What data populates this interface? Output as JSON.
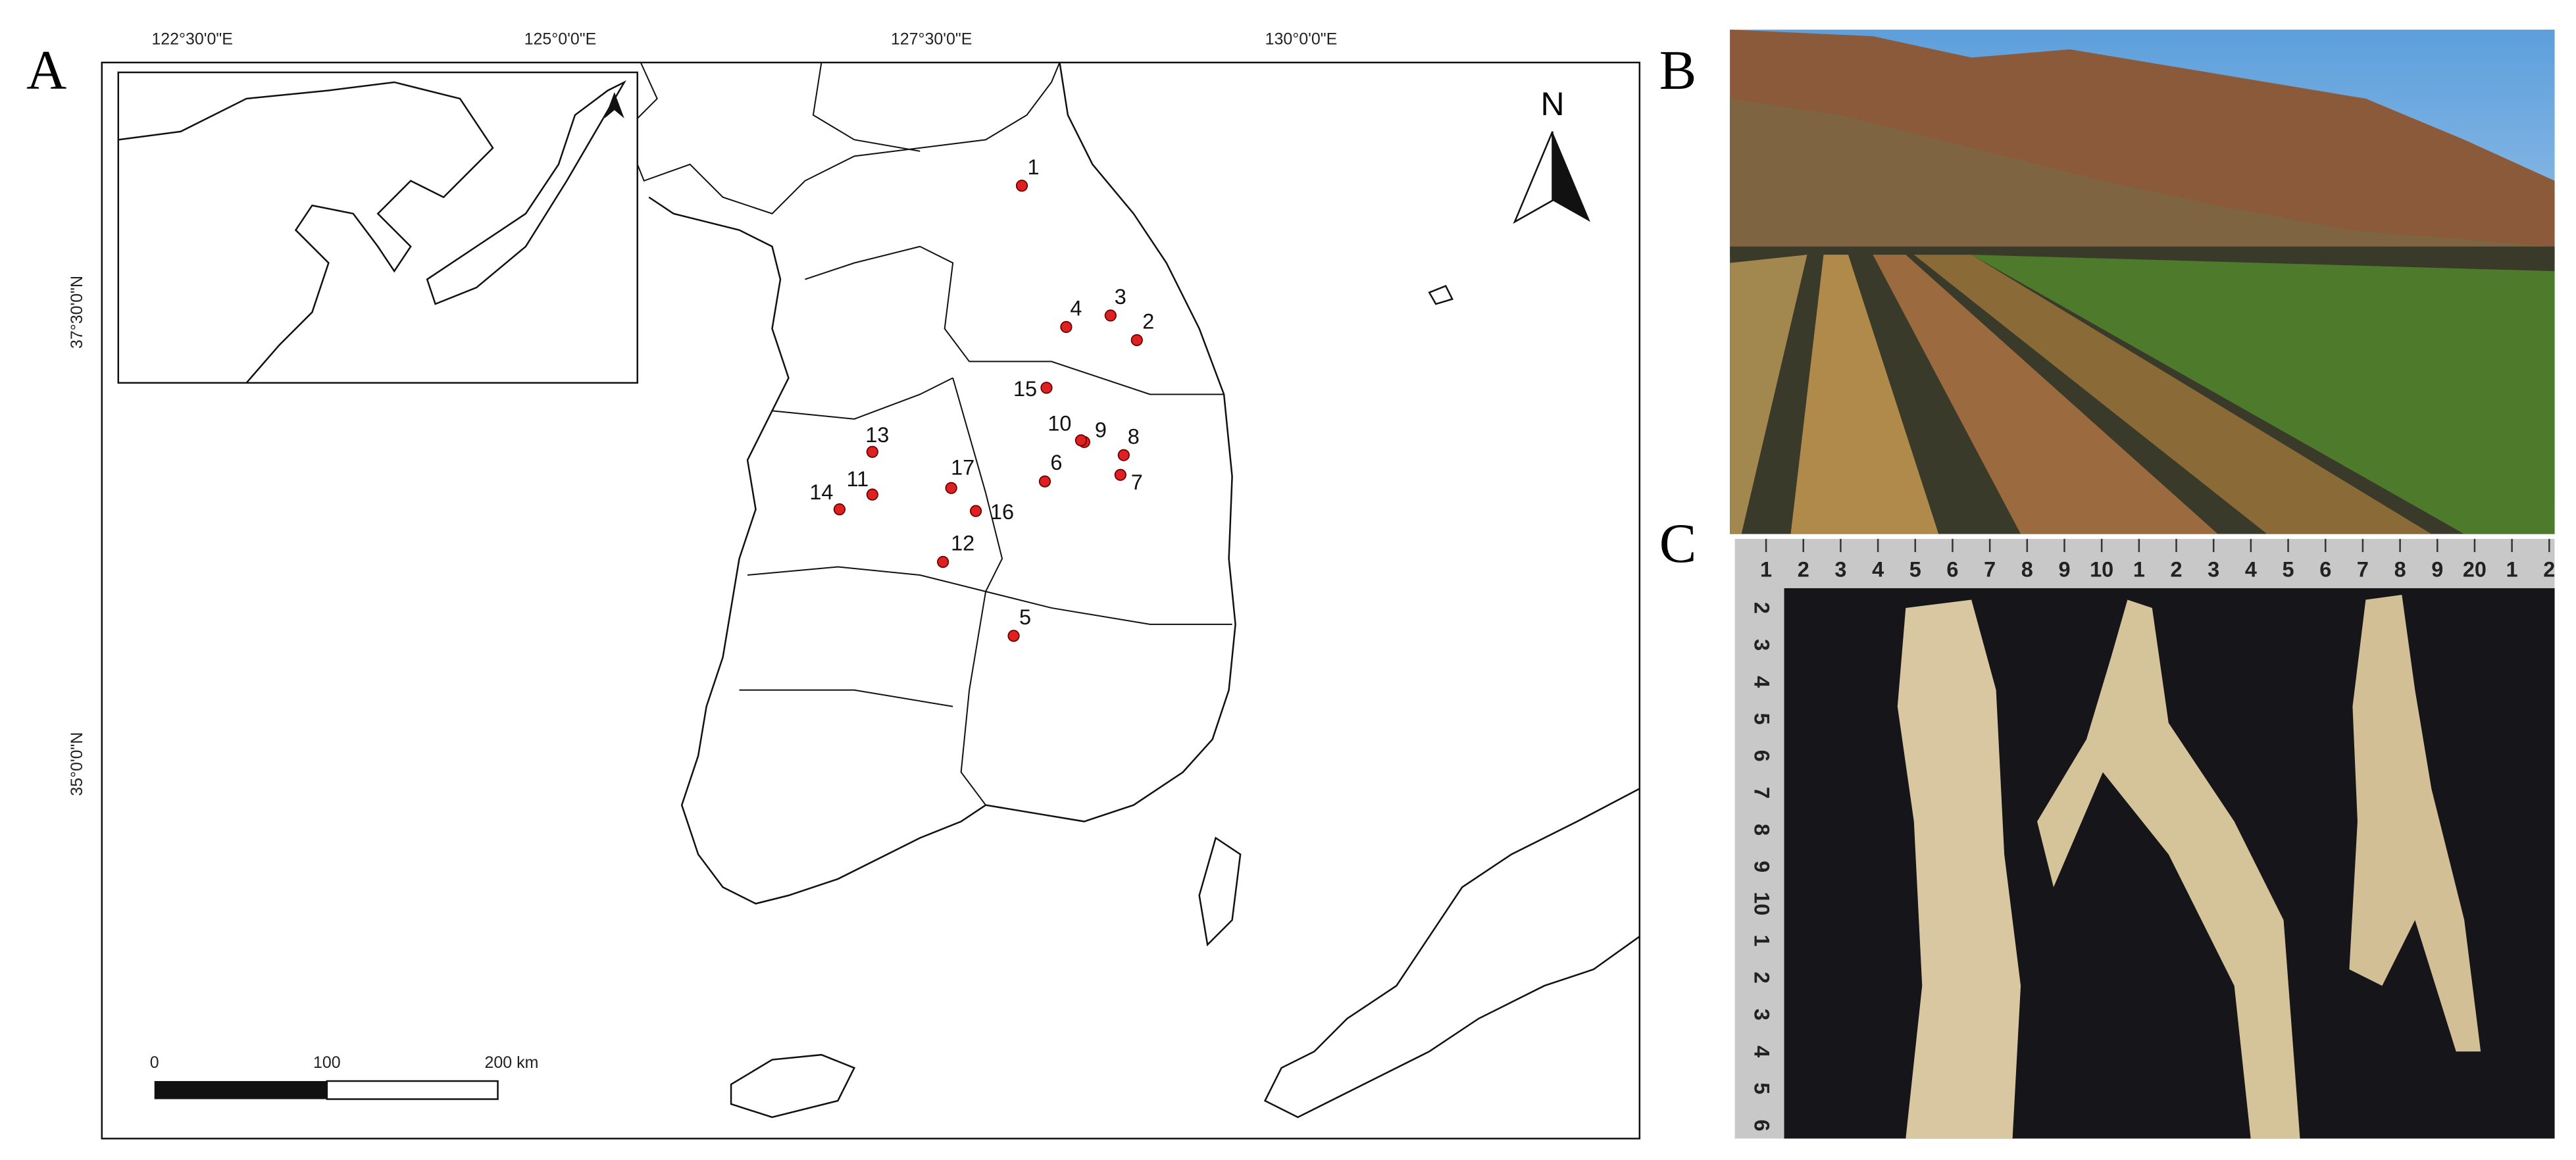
{
  "panels": {
    "a": "A",
    "b": "B",
    "c": "C"
  },
  "map": {
    "x_labels": [
      "122°30'0\"E",
      "125°0'0\"E",
      "127°30'0\"E",
      "130°0'0\"E"
    ],
    "y_labels": [
      "37°30'0\"N",
      "35°0'0\"N"
    ],
    "north": "N",
    "scale_bar": [
      "0",
      "100",
      "200 km"
    ],
    "sites": [
      "1",
      "2",
      "3",
      "4",
      "5",
      "6",
      "7",
      "8",
      "9",
      "10",
      "11",
      "12",
      "13",
      "14",
      "15",
      "16",
      "17"
    ]
  },
  "ruler": {
    "top": [
      "1",
      "2",
      "3",
      "4",
      "5",
      "6",
      "7",
      "8",
      "9",
      "10",
      "1",
      "2",
      "3",
      "4",
      "5",
      "6",
      "7",
      "8",
      "9",
      "20",
      "1",
      "2"
    ],
    "left": [
      "2",
      "3",
      "4",
      "5",
      "6",
      "7",
      "8",
      "9",
      "10",
      "1",
      "2",
      "3",
      "4",
      "5",
      "6"
    ]
  }
}
